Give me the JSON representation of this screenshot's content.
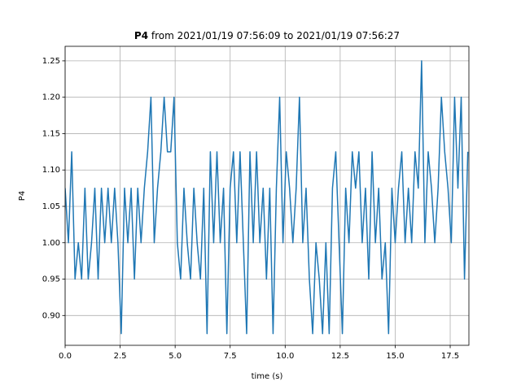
{
  "chart_data": {
    "type": "line",
    "title": {
      "bold": "P4",
      "rest": "from 2021/01/19 07:56:09 to 2021/01/19 07:56:27"
    },
    "xlabel": "time (s)",
    "ylabel": "P4",
    "xlim": [
      0,
      18.35
    ],
    "ylim": [
      0.859,
      1.27
    ],
    "xticks": [
      {
        "value": 0,
        "label": "0.0"
      },
      2.5,
      {
        "value": 5,
        "label": "5.0"
      },
      7.5,
      {
        "value": 10,
        "label": "10.0"
      },
      12.5,
      {
        "value": 15,
        "label": "15.0"
      },
      17.5
    ],
    "yticks": [
      {
        "value": 0.9,
        "label": "0.90"
      },
      0.95,
      {
        "value": 1.0,
        "label": "1.00"
      },
      1.05,
      {
        "value": 1.1,
        "label": "1.10"
      },
      1.15,
      {
        "value": 1.2,
        "label": "1.20"
      },
      1.25
    ],
    "grid": true,
    "series": [
      {
        "color": "#1f77b4",
        "x": [
          0,
          0.15,
          0.3,
          0.45,
          0.6,
          0.75,
          0.9,
          1.05,
          1.2,
          1.35,
          1.5,
          1.65,
          1.8,
          1.95,
          2.1,
          2.25,
          2.4,
          2.55,
          2.7,
          2.85,
          3,
          3.15,
          3.3,
          3.45,
          3.6,
          3.75,
          3.9,
          4.05,
          4.2,
          4.35,
          4.5,
          4.65,
          4.8,
          4.95,
          5.1,
          5.25,
          5.4,
          5.55,
          5.7,
          5.85,
          6,
          6.15,
          6.3,
          6.45,
          6.6,
          6.75,
          6.9,
          7.05,
          7.2,
          7.35,
          7.5,
          7.65,
          7.8,
          7.95,
          8.1,
          8.25,
          8.4,
          8.55,
          8.7,
          8.85,
          9,
          9.15,
          9.3,
          9.45,
          9.6,
          9.75,
          9.9,
          10.05,
          10.2,
          10.35,
          10.5,
          10.65,
          10.8,
          10.95,
          11.1,
          11.25,
          11.4,
          11.55,
          11.7,
          11.85,
          12,
          12.15,
          12.3,
          12.45,
          12.6,
          12.75,
          12.9,
          13.05,
          13.2,
          13.35,
          13.5,
          13.65,
          13.8,
          13.95,
          14.1,
          14.25,
          14.4,
          14.55,
          14.7,
          14.85,
          15,
          15.15,
          15.3,
          15.45,
          15.6,
          15.75,
          15.9,
          16.05,
          16.2,
          16.35,
          16.5,
          16.65,
          16.8,
          16.95,
          17.1,
          17.25,
          17.4,
          17.55,
          17.7,
          17.85,
          18,
          18.15,
          18.3
        ],
        "values": [
          1.075,
          1.0,
          1.125,
          0.95,
          1.0,
          0.95,
          1.075,
          0.95,
          1.0,
          1.075,
          0.95,
          1.075,
          1.0,
          1.075,
          1.0,
          1.075,
          1.0,
          0.875,
          1.075,
          1.0,
          1.075,
          0.95,
          1.075,
          1.0,
          1.075,
          1.125,
          1.2,
          1.0,
          1.075,
          1.125,
          1.2,
          1.125,
          1.125,
          1.2,
          1.0,
          0.95,
          1.075,
          1.0,
          0.95,
          1.075,
          1.0,
          0.95,
          1.075,
          0.875,
          1.125,
          1.0,
          1.125,
          1.0,
          1.075,
          0.875,
          1.075,
          1.125,
          1.0,
          1.125,
          1.0,
          0.875,
          1.125,
          1.0,
          1.125,
          1.0,
          1.075,
          0.95,
          1.075,
          0.875,
          1.075,
          1.2,
          1.0,
          1.125,
          1.075,
          1.0,
          1.075,
          1.2,
          1.0,
          1.075,
          0.95,
          0.875,
          1.0,
          0.95,
          0.875,
          1.0,
          0.875,
          1.075,
          1.125,
          1.0,
          0.875,
          1.075,
          1.0,
          1.125,
          1.075,
          1.125,
          1.0,
          1.075,
          0.95,
          1.125,
          1.0,
          1.075,
          0.95,
          1.0,
          0.875,
          1.075,
          1.0,
          1.075,
          1.125,
          1.0,
          1.075,
          1.0,
          1.125,
          1.075,
          1.25,
          1.0,
          1.125,
          1.075,
          1.0,
          1.075,
          1.2,
          1.125,
          1.075,
          1.0,
          1.2,
          1.075,
          1.2,
          0.95,
          1.125
        ]
      }
    ]
  }
}
